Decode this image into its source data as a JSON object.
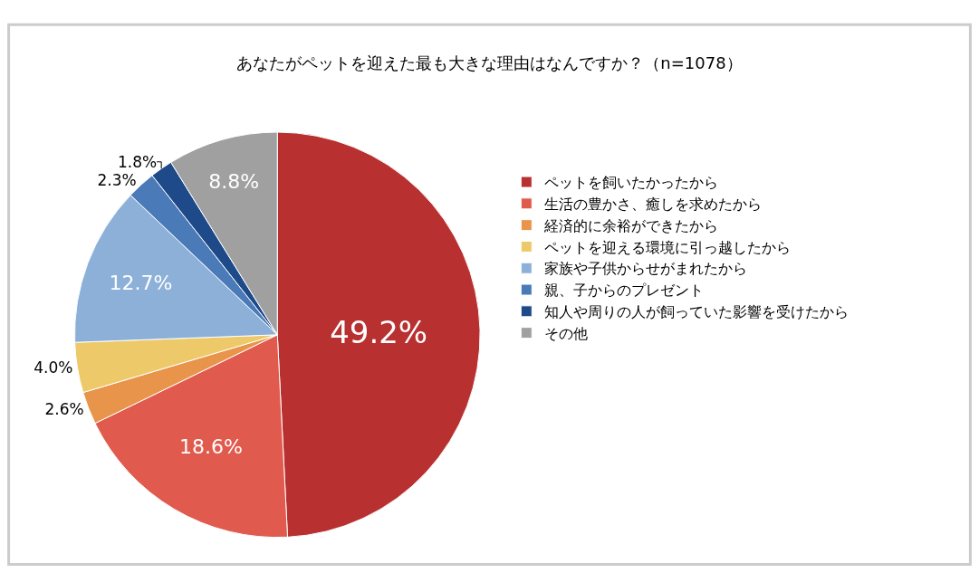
{
  "chart_data": {
    "type": "pie",
    "title": "あなたがペットを迎えた最も大きな理由はなんですか？（n=1078）",
    "categories": [
      "ペットを飼いたかったから",
      "生活の豊かさ、癒しを求めたから",
      "経済的に余裕ができたから",
      "ペットを迎える環境に引っ越したから",
      "家族や子供からせがまれたから",
      "親、子からのプレゼント",
      "知人や周りの人が飼っていた影響を受けたから",
      "その他"
    ],
    "values": [
      49.2,
      18.6,
      2.6,
      4.0,
      12.7,
      2.3,
      1.8,
      8.8
    ],
    "value_labels": [
      "49.2%",
      "18.6%",
      "2.6%",
      "4.0%",
      "12.7%",
      "2.3%",
      "1.8%",
      "8.8%"
    ],
    "colors": [
      "#b83030",
      "#e05a4e",
      "#e8944a",
      "#edc96a",
      "#8db0d8",
      "#4a7ab8",
      "#1e4a8a",
      "#a0a0a0"
    ],
    "legend": "right"
  }
}
